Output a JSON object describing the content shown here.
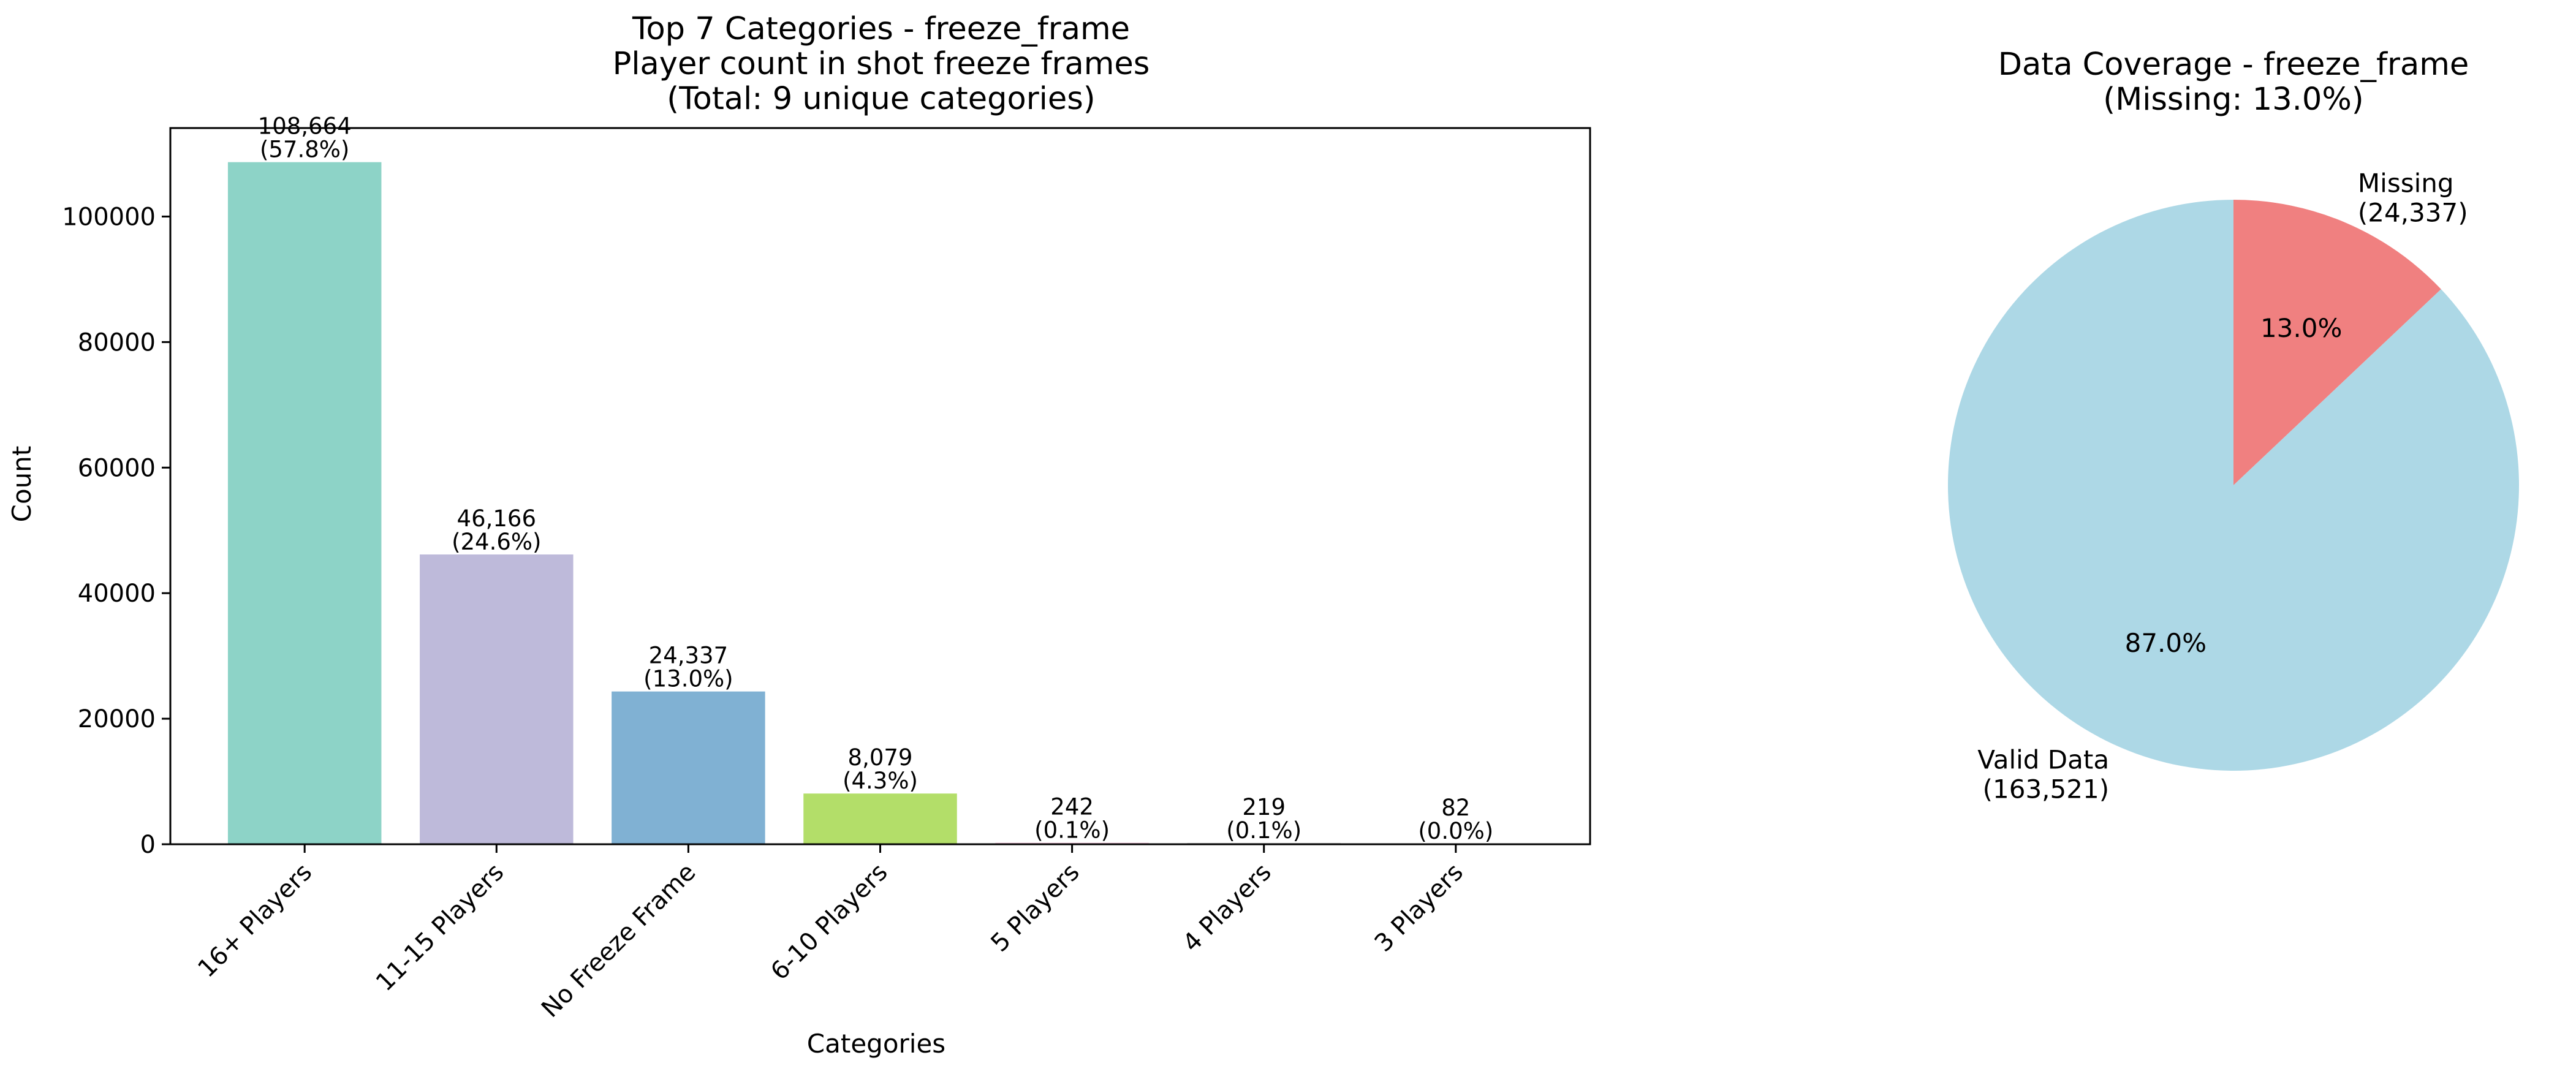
{
  "chart_data": [
    {
      "type": "bar",
      "title": "Top 7 Categories - freeze_frame\nPlayer count in shot freeze frames\n(Total: 9 unique categories)",
      "xlabel": "Categories",
      "ylabel": "Count",
      "ylim": [
        0,
        114097
      ],
      "yticks": [
        0,
        20000,
        40000,
        60000,
        80000,
        100000
      ],
      "grid": false,
      "categories": [
        "16+ Players",
        "11-15 Players",
        "No Freeze Frame",
        "6-10 Players",
        "5 Players",
        "4 Players",
        "3 Players"
      ],
      "values": [
        108664,
        46166,
        24337,
        8079,
        242,
        219,
        82
      ],
      "value_labels": [
        "108,664",
        "46,166",
        "24,337",
        "8,079",
        "242",
        "219",
        "82"
      ],
      "percent_labels": [
        "(57.8%)",
        "(24.6%)",
        "(13.0%)",
        "(4.3%)",
        "(0.1%)",
        "(0.1%)",
        "(0.0%)"
      ],
      "colors": [
        "#8dd3c7",
        "#bebada",
        "#80b1d3",
        "#b3de69",
        "#fccde5",
        "#d9d9d9",
        "#bc80bd"
      ]
    },
    {
      "type": "pie",
      "title": "Data Coverage - freeze_frame\n(Missing: 13.0%)",
      "slices": [
        {
          "label": "Missing",
          "value": 24337,
          "value_label": "(24,337)",
          "percent": "13.0%",
          "color": "#f08080"
        },
        {
          "label": "Valid Data",
          "value": 163521,
          "value_label": "(163,521)",
          "percent": "87.0%",
          "color": "#add8e6"
        }
      ],
      "start_angle_deg": 90,
      "direction": "clockwise"
    }
  ]
}
